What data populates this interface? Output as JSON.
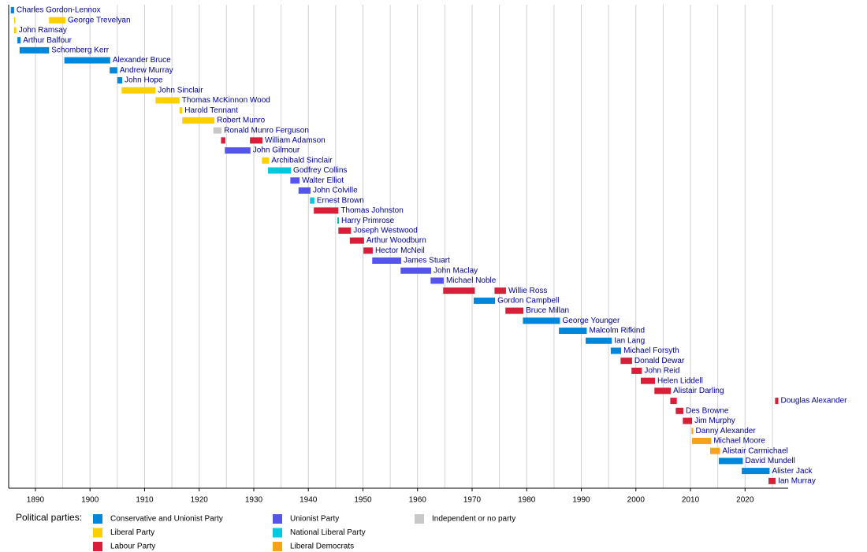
{
  "chart_data": {
    "type": "timeline",
    "xlim": [
      1885.1,
      2027.9
    ],
    "xticks": [
      1890,
      1900,
      1910,
      1920,
      1930,
      1940,
      1950,
      1960,
      1970,
      1980,
      1990,
      2000,
      2010,
      2020
    ],
    "minor_xticks": [
      1895,
      1905,
      1915,
      1925,
      1935,
      1945,
      1955,
      1965,
      1975,
      1985,
      1995,
      2005,
      2015,
      2025
    ],
    "grid": true,
    "legend_title": "Political parties:",
    "legend": [
      {
        "name": "Conservative and Unionist Party",
        "color": "#0087dc"
      },
      {
        "name": "Liberal Party",
        "color": "#fad000"
      },
      {
        "name": "Labour Party",
        "color": "#d6203a"
      },
      {
        "name": "Unionist Party",
        "color": "#5555ee"
      },
      {
        "name": "National Liberal Party",
        "color": "#00c8e0"
      },
      {
        "name": "Liberal Democrats",
        "color": "#f7a21b"
      },
      {
        "name": "Independent or no party",
        "color": "#c8c8c8"
      }
    ],
    "series": [
      {
        "name": "Charles Gordon-Lennox",
        "bars": [
          {
            "start": 1885.5,
            "end": 1886.1,
            "color": "#0087dc"
          }
        ]
      },
      {
        "name": "George Trevelyan",
        "bars": [
          {
            "start": 1886.1,
            "end": 1886.3,
            "color": "#fad000"
          },
          {
            "start": 1892.5,
            "end": 1895.5,
            "color": "#fad000"
          }
        ]
      },
      {
        "name": "John Ramsay",
        "bars": [
          {
            "start": 1886.1,
            "end": 1886.5,
            "color": "#fad000"
          }
        ]
      },
      {
        "name": "Arthur Balfour",
        "bars": [
          {
            "start": 1886.7,
            "end": 1887.3,
            "color": "#0087dc"
          }
        ]
      },
      {
        "name": "Schomberg Kerr",
        "bars": [
          {
            "start": 1887.1,
            "end": 1892.5,
            "color": "#0087dc"
          }
        ]
      },
      {
        "name": "Alexander Bruce",
        "bars": [
          {
            "start": 1895.3,
            "end": 1903.7,
            "color": "#0087dc"
          }
        ]
      },
      {
        "name": "Andrew Murray",
        "bars": [
          {
            "start": 1903.6,
            "end": 1905.0,
            "color": "#0087dc"
          }
        ]
      },
      {
        "name": "John Hope",
        "bars": [
          {
            "start": 1905.0,
            "end": 1905.9,
            "color": "#0087dc"
          }
        ]
      },
      {
        "name": "John Sinclair",
        "bars": [
          {
            "start": 1905.8,
            "end": 1912.0,
            "color": "#fad000"
          }
        ]
      },
      {
        "name": "Thomas McKinnon Wood",
        "bars": [
          {
            "start": 1912.0,
            "end": 1916.4,
            "color": "#fad000"
          }
        ]
      },
      {
        "name": "Harold Tennant",
        "bars": [
          {
            "start": 1916.4,
            "end": 1916.9,
            "color": "#fad000"
          }
        ]
      },
      {
        "name": "Robert Munro",
        "bars": [
          {
            "start": 1916.9,
            "end": 1922.8,
            "color": "#fad000"
          }
        ]
      },
      {
        "name": "Ronald Munro Ferguson",
        "bars": [
          {
            "start": 1922.6,
            "end": 1924.1,
            "color": "#c8c8c8"
          }
        ]
      },
      {
        "name": "William Adamson",
        "bars": [
          {
            "start": 1924.0,
            "end": 1924.8,
            "color": "#d6203a"
          },
          {
            "start": 1929.3,
            "end": 1931.6,
            "color": "#d6203a"
          }
        ]
      },
      {
        "name": "John Gilmour",
        "bars": [
          {
            "start": 1924.7,
            "end": 1929.4,
            "color": "#5555ee"
          }
        ]
      },
      {
        "name": "Archibald Sinclair",
        "bars": [
          {
            "start": 1931.5,
            "end": 1932.8,
            "color": "#fad000"
          }
        ]
      },
      {
        "name": "Godfrey Collins",
        "bars": [
          {
            "start": 1932.6,
            "end": 1936.8,
            "color": "#00c8e0"
          }
        ]
      },
      {
        "name": "Walter Elliot",
        "bars": [
          {
            "start": 1936.7,
            "end": 1938.4,
            "color": "#5555ee"
          }
        ]
      },
      {
        "name": "John Colville",
        "bars": [
          {
            "start": 1938.2,
            "end": 1940.4,
            "color": "#5555ee"
          }
        ]
      },
      {
        "name": "Ernest Brown",
        "bars": [
          {
            "start": 1940.3,
            "end": 1941.1,
            "color": "#00c8e0"
          }
        ]
      },
      {
        "name": "Thomas Johnston",
        "bars": [
          {
            "start": 1941.0,
            "end": 1945.5,
            "color": "#d6203a"
          }
        ]
      },
      {
        "name": "Harry Primrose",
        "bars": [
          {
            "start": 1945.3,
            "end": 1945.6,
            "color": "#00c8a0"
          }
        ]
      },
      {
        "name": "Joseph Westwood",
        "bars": [
          {
            "start": 1945.5,
            "end": 1947.8,
            "color": "#d6203a"
          }
        ]
      },
      {
        "name": "Arthur Woodburn",
        "bars": [
          {
            "start": 1947.6,
            "end": 1950.2,
            "color": "#d6203a"
          }
        ]
      },
      {
        "name": "Hector McNeil",
        "bars": [
          {
            "start": 1950.1,
            "end": 1951.8,
            "color": "#d6203a"
          }
        ]
      },
      {
        "name": "James Stuart",
        "bars": [
          {
            "start": 1951.7,
            "end": 1957.0,
            "color": "#5555ee"
          }
        ]
      },
      {
        "name": "John Maclay",
        "bars": [
          {
            "start": 1956.9,
            "end": 1962.5,
            "color": "#5555ee"
          }
        ]
      },
      {
        "name": "Michael Noble",
        "bars": [
          {
            "start": 1962.4,
            "end": 1964.8,
            "color": "#5555ee"
          }
        ]
      },
      {
        "name": "Willie Ross",
        "bars": [
          {
            "start": 1964.7,
            "end": 1970.5,
            "color": "#d6203a"
          },
          {
            "start": 1974.1,
            "end": 1976.2,
            "color": "#d6203a"
          }
        ]
      },
      {
        "name": "Gordon Campbell",
        "bars": [
          {
            "start": 1970.3,
            "end": 1974.2,
            "color": "#0087dc"
          }
        ]
      },
      {
        "name": "Bruce Millan",
        "bars": [
          {
            "start": 1976.1,
            "end": 1979.4,
            "color": "#d6203a"
          }
        ]
      },
      {
        "name": "George Younger",
        "bars": [
          {
            "start": 1979.3,
            "end": 1986.1,
            "color": "#0087dc"
          }
        ]
      },
      {
        "name": "Malcolm Rifkind",
        "bars": [
          {
            "start": 1985.9,
            "end": 1991.0,
            "color": "#0087dc"
          }
        ]
      },
      {
        "name": "Ian Lang",
        "bars": [
          {
            "start": 1990.8,
            "end": 1995.6,
            "color": "#0087dc"
          }
        ]
      },
      {
        "name": "Michael Forsyth",
        "bars": [
          {
            "start": 1995.4,
            "end": 1997.3,
            "color": "#0087dc"
          }
        ]
      },
      {
        "name": "Donald Dewar",
        "bars": [
          {
            "start": 1997.2,
            "end": 1999.3,
            "color": "#d6203a"
          }
        ]
      },
      {
        "name": "John Reid",
        "bars": [
          {
            "start": 1999.2,
            "end": 2001.1,
            "color": "#d6203a"
          }
        ]
      },
      {
        "name": "Helen Liddell",
        "bars": [
          {
            "start": 2000.9,
            "end": 2003.5,
            "color": "#d6203a"
          }
        ]
      },
      {
        "name": "Alistair Darling",
        "bars": [
          {
            "start": 2003.4,
            "end": 2006.4,
            "color": "#d6203a"
          }
        ]
      },
      {
        "name": "Douglas Alexander",
        "bars": [
          {
            "start": 2006.3,
            "end": 2007.5,
            "color": "#d6203a"
          },
          {
            "start": 2025.5,
            "end": 2026.1,
            "color": "#d6203a"
          }
        ]
      },
      {
        "name": "Des Browne",
        "bars": [
          {
            "start": 2007.3,
            "end": 2008.7,
            "color": "#d6203a"
          }
        ]
      },
      {
        "name": "Jim Murphy",
        "bars": [
          {
            "start": 2008.6,
            "end": 2010.3,
            "color": "#d6203a"
          }
        ]
      },
      {
        "name": "Danny Alexander",
        "bars": [
          {
            "start": 2010.2,
            "end": 2010.5,
            "color": "#f7a21b"
          }
        ]
      },
      {
        "name": "Michael Moore",
        "bars": [
          {
            "start": 2010.3,
            "end": 2013.8,
            "color": "#f7a21b"
          }
        ]
      },
      {
        "name": "Alistair Carmichael",
        "bars": [
          {
            "start": 2013.6,
            "end": 2015.4,
            "color": "#f7a21b"
          }
        ]
      },
      {
        "name": "David Mundell",
        "bars": [
          {
            "start": 2015.2,
            "end": 2019.6,
            "color": "#0087dc"
          }
        ]
      },
      {
        "name": "Alister Jack",
        "bars": [
          {
            "start": 2019.4,
            "end": 2024.5,
            "color": "#0087dc"
          }
        ]
      },
      {
        "name": "Ian Murray",
        "bars": [
          {
            "start": 2024.3,
            "end": 2025.6,
            "color": "#d6203a"
          }
        ]
      }
    ]
  }
}
